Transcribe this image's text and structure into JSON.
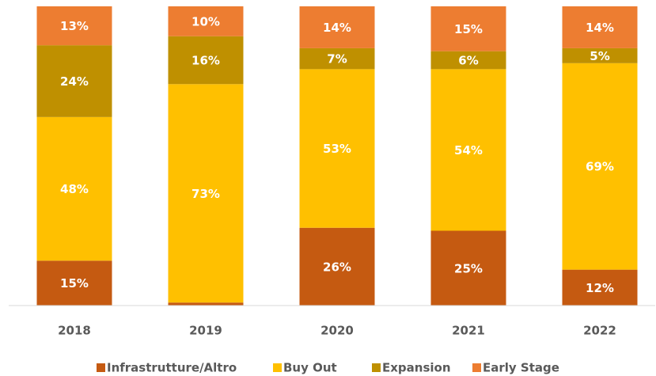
{
  "chart_data": {
    "type": "stacked_bar",
    "categories": [
      "2018",
      "2019",
      "2020",
      "2021",
      "2022"
    ],
    "series": [
      {
        "name": "Infrastrutture/Altro",
        "color": "#c55a11",
        "values": [
          15,
          1,
          26,
          25,
          12
        ],
        "value_labels": [
          "15%",
          null,
          "26%",
          "25%",
          "12%"
        ]
      },
      {
        "name": "Buy Out",
        "color": "#ffc000",
        "values": [
          48,
          73,
          53,
          54,
          69
        ],
        "value_labels": [
          "48%",
          "73%",
          "53%",
          "54%",
          "69%"
        ]
      },
      {
        "name": "Expansion",
        "color": "#bf9000",
        "values": [
          24,
          16,
          7,
          6,
          5
        ],
        "value_labels": [
          "24%",
          "16%",
          "7%",
          "6%",
          "5%"
        ]
      },
      {
        "name": "Early Stage",
        "color": "#ed7d31",
        "values": [
          13,
          10,
          14,
          15,
          14
        ],
        "value_labels": [
          "13%",
          "10%",
          "14%",
          "15%",
          "14%"
        ]
      }
    ],
    "ylim": [
      0,
      100
    ],
    "legend": "bottom"
  }
}
